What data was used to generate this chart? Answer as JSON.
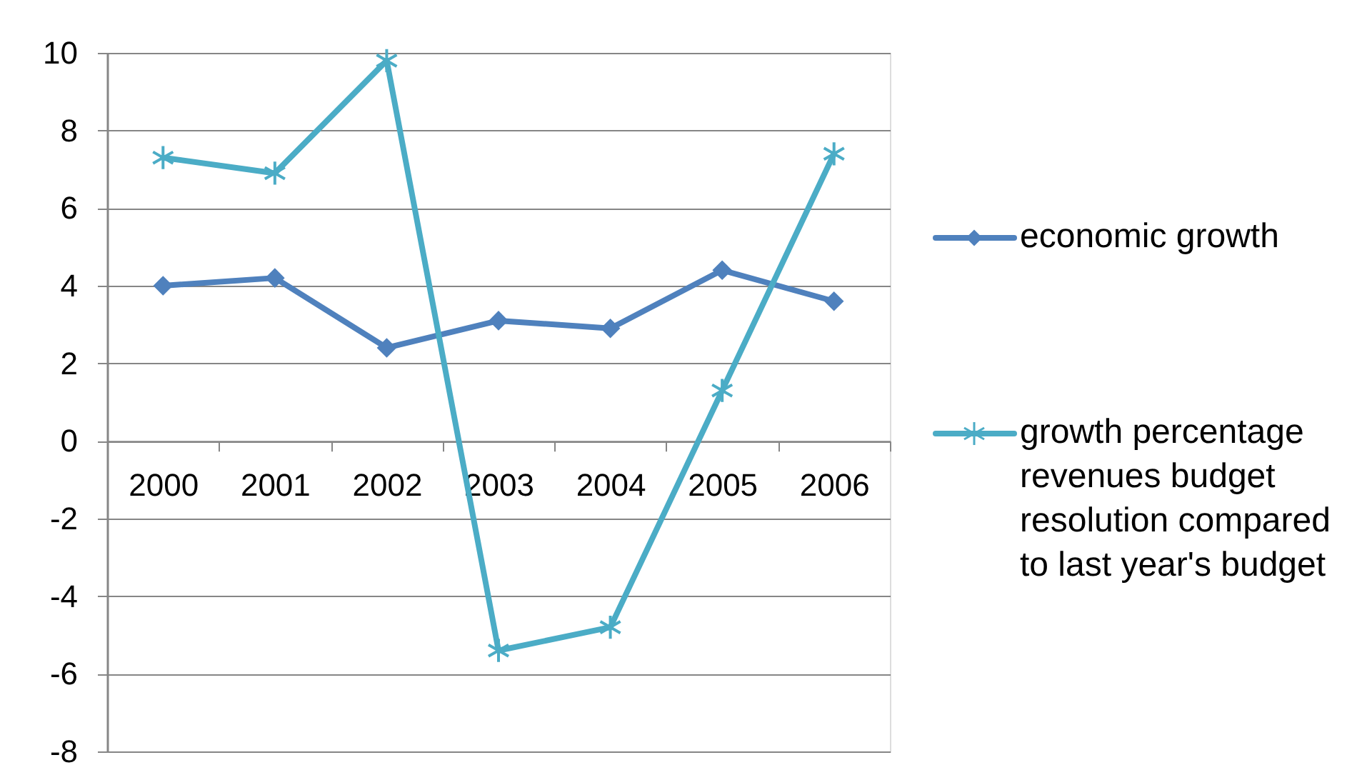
{
  "chart_data": {
    "type": "line",
    "categories": [
      "2000",
      "2001",
      "2002",
      "2003",
      "2004",
      "2005",
      "2006"
    ],
    "series": [
      {
        "name": "economic growth",
        "color": "#4f81bd",
        "marker": "diamond",
        "values": [
          4.0,
          4.2,
          2.4,
          3.1,
          2.9,
          4.4,
          3.6
        ]
      },
      {
        "name": "growth percentage revenues budget resolution compared to last year's budget",
        "color": "#4bacc6",
        "marker": "cross",
        "values": [
          7.3,
          6.9,
          9.8,
          -5.4,
          -4.8,
          1.3,
          7.4
        ]
      }
    ],
    "ylim": [
      -8,
      10
    ],
    "yticks": [
      -8,
      -6,
      -4,
      -2,
      0,
      2,
      4,
      6,
      8,
      10
    ],
    "grid": "y",
    "legend": "right",
    "line_style": "solid"
  }
}
